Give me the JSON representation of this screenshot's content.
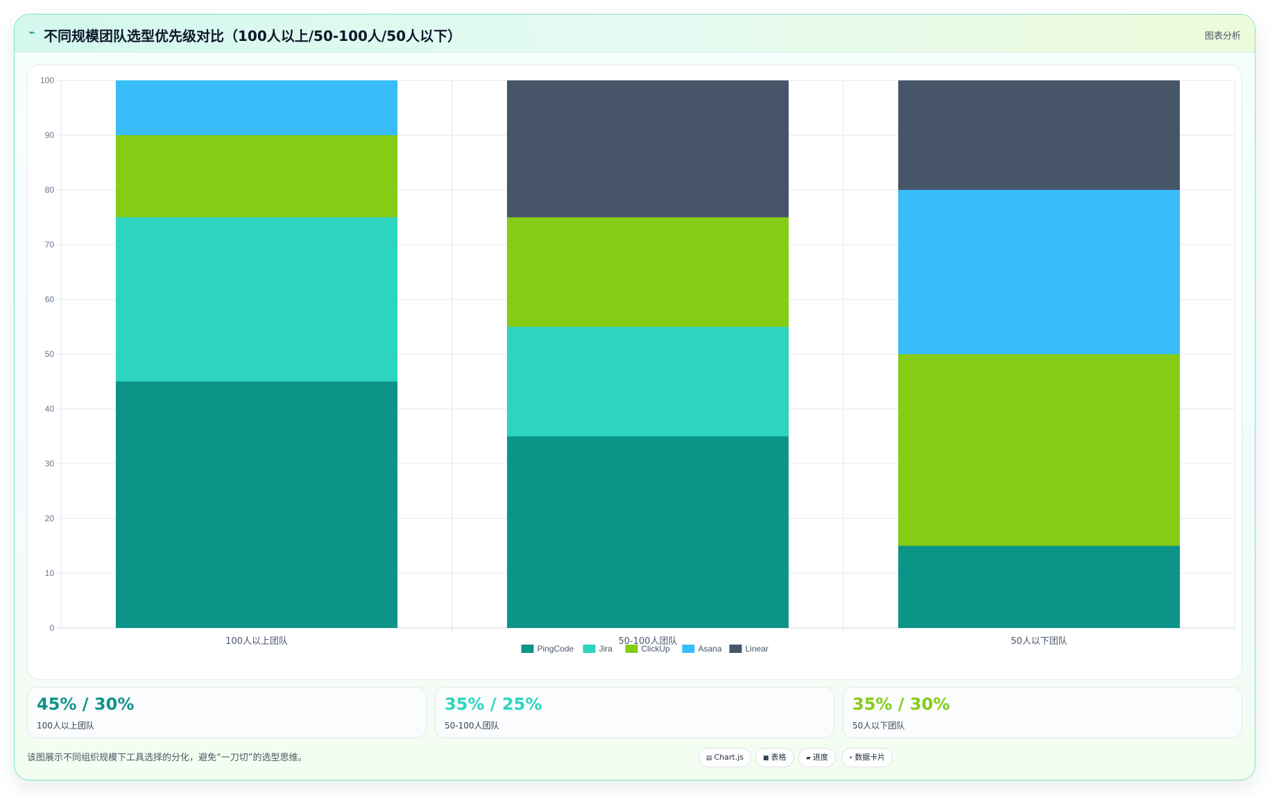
{
  "header": {
    "title": "不同规模团队选型优先级对比（100人以上/50-100人/50人以下）",
    "analysis_label": "图表分析",
    "title_icon": "bolt-icon"
  },
  "chart_data": {
    "type": "bar",
    "stacked": true,
    "categories": [
      "100人以上团队",
      "50-100人团队",
      "50人以下团队"
    ],
    "series": [
      {
        "name": "PingCode",
        "values": [
          45,
          35,
          15
        ],
        "color": "#0d9488"
      },
      {
        "name": "Jira",
        "values": [
          30,
          20,
          0
        ],
        "color": "#2dd4bf"
      },
      {
        "name": "ClickUp",
        "values": [
          15,
          20,
          35
        ],
        "color": "#84cc16"
      },
      {
        "name": "Asana",
        "values": [
          10,
          0,
          30
        ],
        "color": "#38bdf8"
      },
      {
        "name": "Linear",
        "values": [
          0,
          25,
          20
        ],
        "color": "#475569"
      }
    ],
    "ylim": [
      0,
      100
    ],
    "yticks": [
      "0",
      "10",
      "20",
      "30",
      "40",
      "50",
      "60",
      "70",
      "80",
      "90",
      "100"
    ],
    "grid": true,
    "legend": "bottom"
  },
  "stats": [
    {
      "value": "45% / 30%",
      "label": "100人以上团队",
      "color": "#0d9488"
    },
    {
      "value": "35% / 25%",
      "label": "50-100人团队",
      "color": "#2dd4bf"
    },
    {
      "value": "35% / 30%",
      "label": "50人以下团队",
      "color": "#84cc16"
    }
  ],
  "footer": {
    "note": "该图展示不同组织规模下工具选择的分化，避免“一刀切”的选型思维。",
    "chips": [
      {
        "icon": "chart-icon",
        "label": "Chart.js"
      },
      {
        "icon": "table-icon",
        "label": "表格"
      },
      {
        "icon": "progress-icon",
        "label": "进度"
      },
      {
        "icon": "card-icon",
        "label": "数据卡片"
      }
    ]
  }
}
